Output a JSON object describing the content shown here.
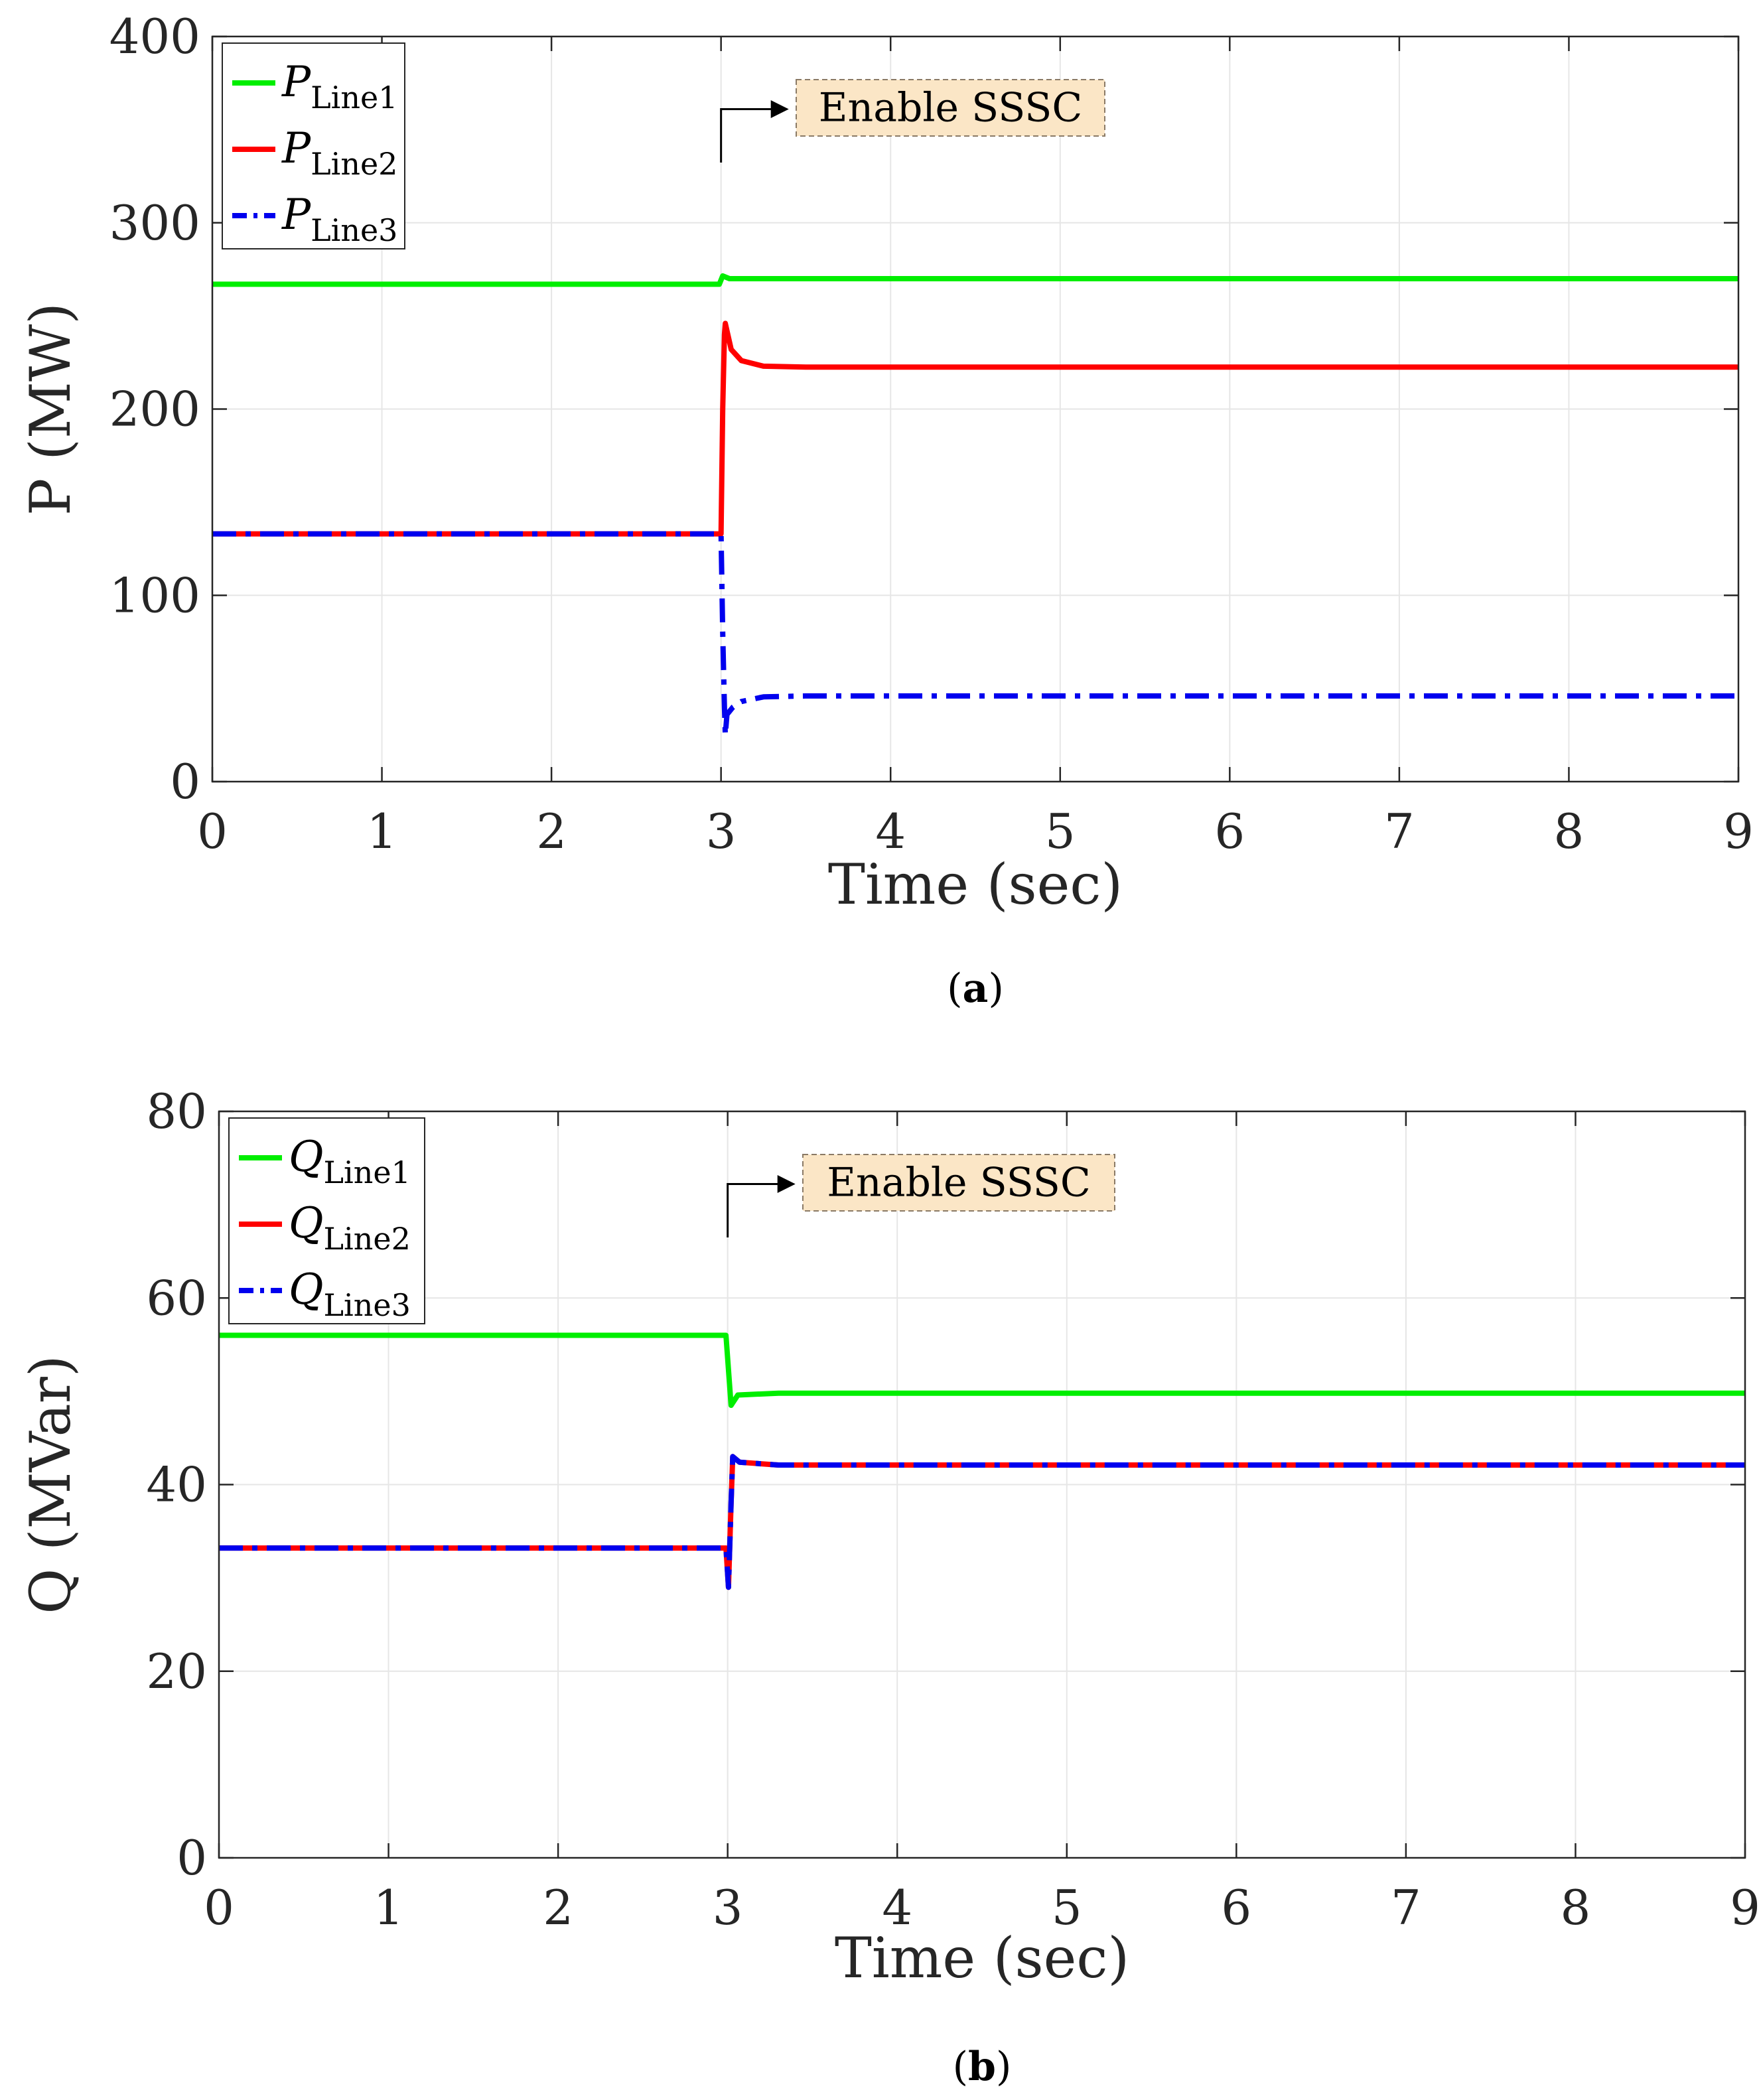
{
  "chart_data": [
    {
      "panel": "a",
      "caption": "a",
      "type": "line",
      "xlabel": "Time (sec)",
      "ylabel": "P (MW)",
      "xlim": [
        0,
        9
      ],
      "ylim": [
        0,
        400
      ],
      "xticks": [
        0,
        1,
        2,
        3,
        4,
        5,
        6,
        7,
        8,
        9
      ],
      "yticks": [
        0,
        100,
        200,
        300,
        400
      ],
      "grid": true,
      "legend_position": "top-left",
      "annotation": {
        "text": "Enable SSSC",
        "x": 3
      },
      "series": [
        {
          "name": "P",
          "sub": "Line1",
          "color": "#00ee00",
          "dash": "solid",
          "points": [
            [
              0,
              267
            ],
            [
              2.9,
              267
            ],
            [
              2.99,
              267
            ],
            [
              3.01,
              271.5
            ],
            [
              3.05,
              270
            ],
            [
              9,
              270
            ]
          ]
        },
        {
          "name": "P",
          "sub": "Line2",
          "color": "#ff0000",
          "dash": "solid",
          "points": [
            [
              0,
              133
            ],
            [
              3.0,
              133
            ],
            [
              3.01,
              200
            ],
            [
              3.02,
              240
            ],
            [
              3.025,
              246
            ],
            [
              3.06,
              232
            ],
            [
              3.12,
              226
            ],
            [
              3.25,
              223
            ],
            [
              3.5,
              222.5
            ],
            [
              9,
              222.5
            ]
          ]
        },
        {
          "name": "P",
          "sub": "Line3",
          "color": "#0000ee",
          "dash": "dashdot",
          "points": [
            [
              0,
              133
            ],
            [
              3.0,
              133
            ],
            [
              3.01,
              80
            ],
            [
              3.02,
              40
            ],
            [
              3.025,
              25
            ],
            [
              3.035,
              36
            ],
            [
              3.07,
              40
            ],
            [
              3.12,
              43
            ],
            [
              3.25,
              45.5
            ],
            [
              3.5,
              46
            ],
            [
              9,
              46
            ]
          ]
        }
      ]
    },
    {
      "panel": "b",
      "caption": "b",
      "type": "line",
      "xlabel": "Time (sec)",
      "ylabel": "Q (MVar)",
      "xlim": [
        0,
        9
      ],
      "ylim": [
        0,
        80
      ],
      "xticks": [
        0,
        1,
        2,
        3,
        4,
        5,
        6,
        7,
        8,
        9
      ],
      "yticks": [
        0,
        20,
        40,
        60,
        80
      ],
      "grid": true,
      "legend_position": "top-left",
      "annotation": {
        "text": "Enable SSSC",
        "x": 3
      },
      "series": [
        {
          "name": "Q",
          "sub": "Line1",
          "color": "#00ee00",
          "dash": "solid",
          "points": [
            [
              0,
              56
            ],
            [
              2.99,
              56
            ],
            [
              3.02,
              48.5
            ],
            [
              3.06,
              49.6
            ],
            [
              3.3,
              49.8
            ],
            [
              9,
              49.8
            ]
          ]
        },
        {
          "name": "Q",
          "sub": "Line2",
          "color": "#ff0000",
          "dash": "solid",
          "points": [
            [
              0,
              33.2
            ],
            [
              2.99,
              33.2
            ],
            [
              3.005,
              29
            ],
            [
              3.02,
              38
            ],
            [
              3.03,
              43
            ],
            [
              3.07,
              42.4
            ],
            [
              3.3,
              42.1
            ],
            [
              9,
              42.1
            ]
          ]
        },
        {
          "name": "Q",
          "sub": "Line3",
          "color": "#0000ee",
          "dash": "dashdot",
          "points": [
            [
              0,
              33.2
            ],
            [
              2.99,
              33.2
            ],
            [
              3.005,
              29
            ],
            [
              3.02,
              38
            ],
            [
              3.03,
              43
            ],
            [
              3.07,
              42.4
            ],
            [
              3.3,
              42.1
            ],
            [
              9,
              42.1
            ]
          ]
        }
      ]
    }
  ]
}
